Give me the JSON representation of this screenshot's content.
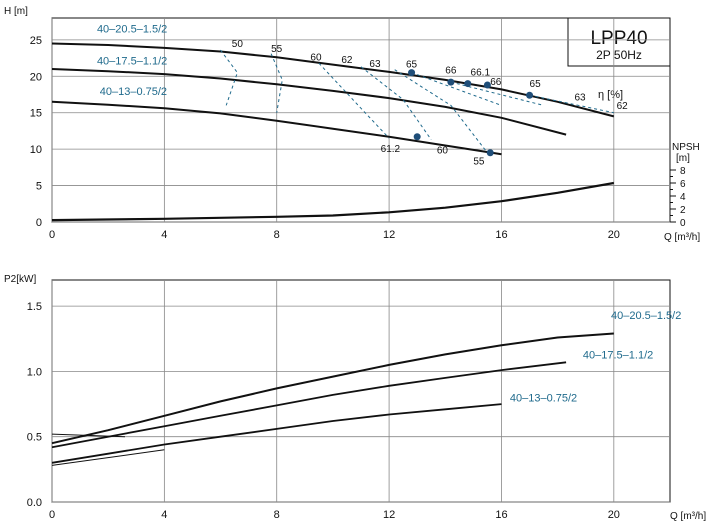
{
  "chart_data": [
    {
      "type": "line",
      "title": "LPP40",
      "subtitle": "2P 50Hz",
      "xlabel": "Q [m³/h]",
      "ylabel": "H [m]",
      "xlim": [
        0,
        22
      ],
      "ylim": [
        0,
        28
      ],
      "x_ticks": [
        "0",
        "4",
        "8",
        "12",
        "16",
        "20"
      ],
      "y_ticks": [
        "0",
        "5",
        "10",
        "15",
        "20",
        "25"
      ],
      "grid": true,
      "eta_label": "η [%]",
      "npsh_label": "NPSH",
      "npsh_unit": "[m]",
      "npsh_ticks": [
        "0",
        "2",
        "4",
        "6",
        "8"
      ],
      "npsh_ticks_minor": [
        "1",
        "3",
        "5",
        "7"
      ],
      "npsh_ylim": [
        0,
        8
      ],
      "series": [
        {
          "name": "40–20.5–1.5/2",
          "x": [
            0,
            2,
            4,
            6,
            8,
            10,
            12,
            14,
            16,
            18,
            20
          ],
          "y": [
            24.5,
            24.3,
            23.9,
            23.4,
            22.6,
            21.6,
            20.6,
            19.5,
            18.2,
            16.5,
            14.5
          ]
        },
        {
          "name": "40–17.5–1.1/2",
          "x": [
            0,
            2,
            4,
            6,
            8,
            10,
            12,
            14,
            16,
            18.3
          ],
          "y": [
            21.0,
            20.7,
            20.3,
            19.7,
            18.9,
            18.0,
            17.0,
            15.8,
            14.3,
            12.0
          ]
        },
        {
          "name": "40–13–0.75/2",
          "x": [
            0,
            2,
            4,
            6,
            8,
            10,
            12,
            14,
            16
          ],
          "y": [
            16.5,
            16.1,
            15.6,
            14.9,
            13.9,
            12.8,
            11.7,
            10.5,
            9.3
          ]
        }
      ],
      "npsh_curve": {
        "x": [
          0,
          4,
          8,
          10,
          12,
          14,
          16,
          18,
          20
        ],
        "y": [
          0.3,
          0.5,
          0.8,
          1.0,
          1.5,
          2.2,
          3.2,
          4.5,
          6.0
        ]
      },
      "efficiency_labels": [
        "50",
        "55",
        "60",
        "62",
        "63",
        "65",
        "66",
        "66.1",
        "66",
        "65",
        "63",
        "62",
        "61.2",
        "60",
        "55"
      ],
      "efficiency_points": [
        {
          "x": 12.8,
          "y": 20.5
        },
        {
          "x": 14.2,
          "y": 19.2
        },
        {
          "x": 14.8,
          "y": 19.0
        },
        {
          "x": 15.5,
          "y": 18.8
        },
        {
          "x": 17.0,
          "y": 17.4
        },
        {
          "x": 13.0,
          "y": 11.7
        },
        {
          "x": 15.6,
          "y": 9.5
        }
      ]
    },
    {
      "type": "line",
      "xlabel": "Q [m³/h]",
      "ylabel": "P2[kW]",
      "xlim": [
        0,
        22
      ],
      "ylim": [
        0,
        1.7
      ],
      "x_ticks": [
        "0",
        "4",
        "8",
        "12",
        "16",
        "20"
      ],
      "y_ticks": [
        "0.0",
        "0.5",
        "1.0",
        "1.5"
      ],
      "grid": true,
      "series": [
        {
          "name": "40–20.5–1.5/2",
          "x": [
            0,
            2,
            4,
            6,
            8,
            10,
            12,
            14,
            16,
            18,
            20
          ],
          "y": [
            0.45,
            0.55,
            0.66,
            0.77,
            0.87,
            0.96,
            1.05,
            1.13,
            1.2,
            1.26,
            1.29
          ]
        },
        {
          "name": "40–17.5–1.1/2",
          "x": [
            0,
            2,
            4,
            6,
            8,
            10,
            12,
            14,
            16,
            18.3
          ],
          "y": [
            0.42,
            0.5,
            0.58,
            0.66,
            0.74,
            0.82,
            0.89,
            0.95,
            1.01,
            1.07
          ]
        },
        {
          "name": "40–13–0.75/2",
          "x": [
            0,
            2,
            4,
            6,
            8,
            10,
            12,
            14,
            16
          ],
          "y": [
            0.3,
            0.37,
            0.44,
            0.5,
            0.56,
            0.62,
            0.67,
            0.71,
            0.75
          ]
        }
      ]
    }
  ],
  "colors": {
    "curve": "#111111",
    "label": "#1f6a8c",
    "dashed": "#1f6a8c",
    "marker": "#1f4e79",
    "grid": "#888888"
  }
}
